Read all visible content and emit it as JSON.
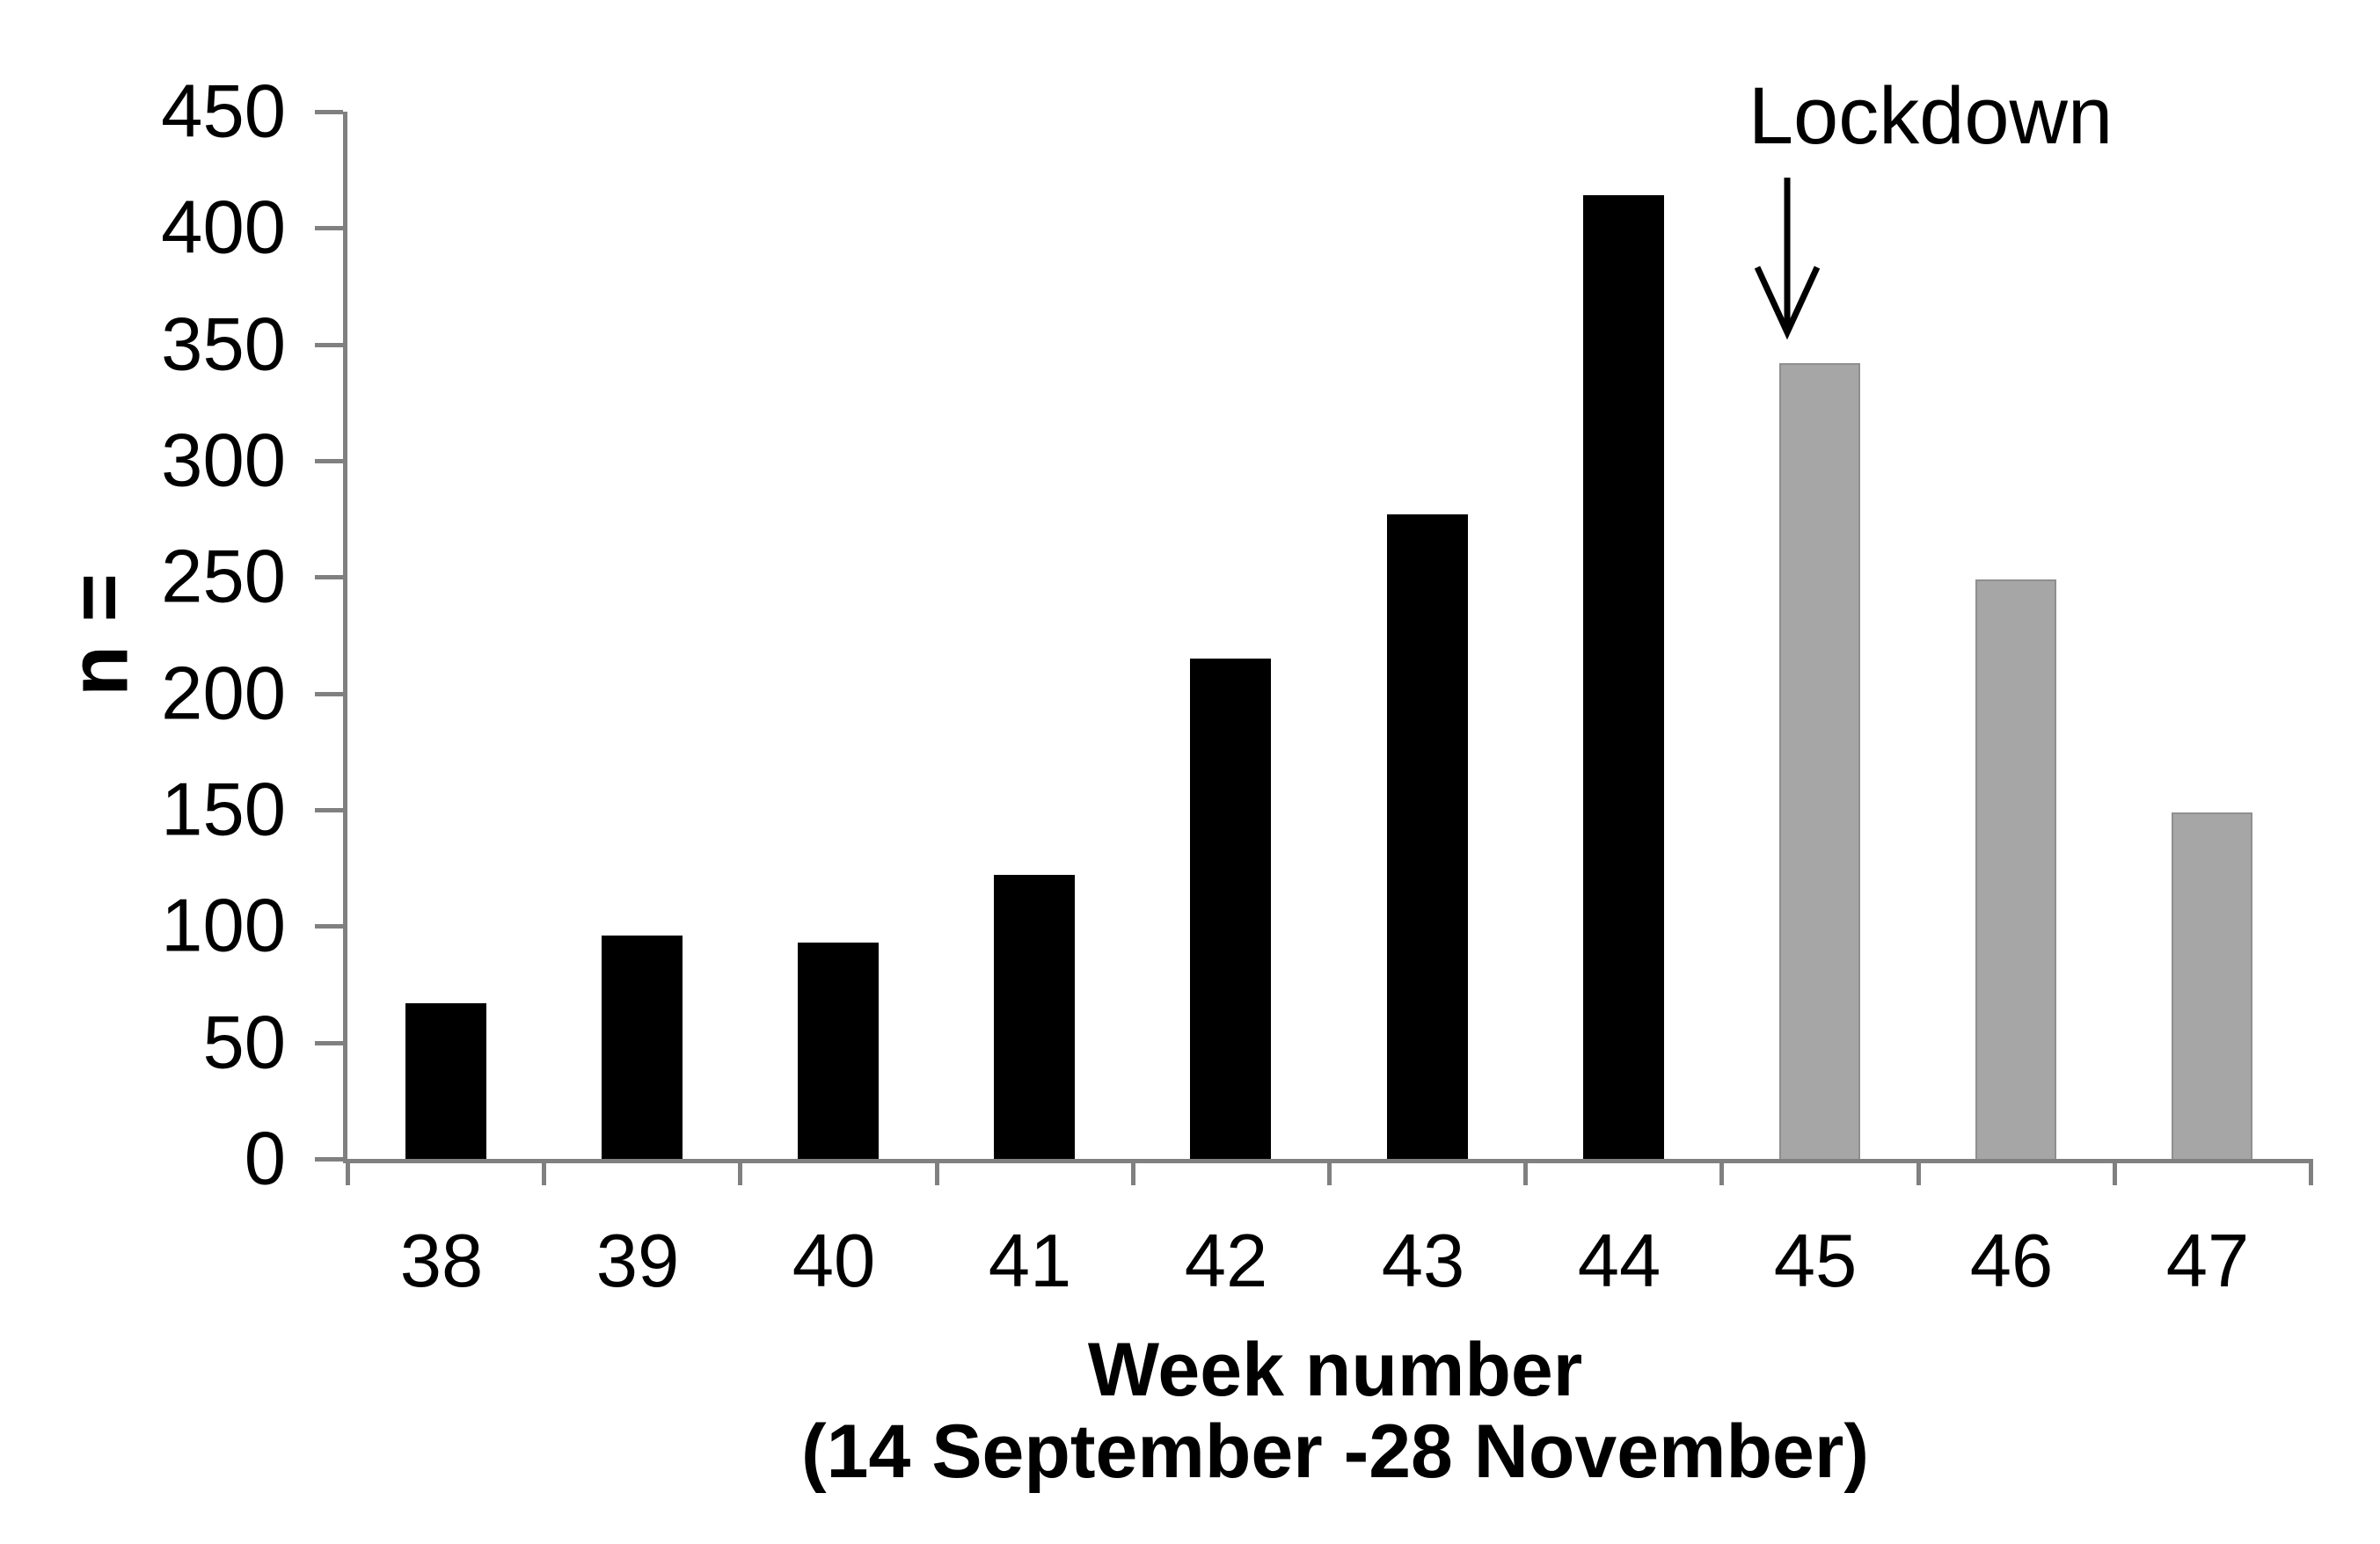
{
  "figure": {
    "background": "#ffffff",
    "axis_color": "#808080",
    "text_color": "#000000"
  },
  "chart_data": {
    "type": "bar",
    "title": "",
    "categories": [
      "38",
      "39",
      "40",
      "41",
      "42",
      "43",
      "44",
      "45",
      "46",
      "47"
    ],
    "values": [
      67,
      96,
      93,
      122,
      215,
      277,
      414,
      342,
      249,
      149
    ],
    "bar_colors": [
      "#000000",
      "#000000",
      "#000000",
      "#000000",
      "#000000",
      "#000000",
      "#000000",
      "#a6a6a6",
      "#a6a6a6",
      "#a6a6a6"
    ],
    "ylabel": "n =",
    "xlabel_line1": "Week number",
    "xlabel_line2": "(14 September -28 November)",
    "ylim": [
      0,
      450
    ],
    "yticks": [
      0,
      50,
      100,
      150,
      200,
      250,
      300,
      350,
      400,
      450
    ],
    "grid": false,
    "legend": "none",
    "annotation": {
      "text": "Lockdown",
      "target_category": "45",
      "arrow_direction": "down"
    }
  }
}
